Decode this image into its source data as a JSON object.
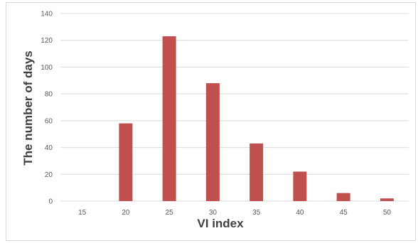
{
  "chart_data": {
    "type": "bar",
    "title": "",
    "xlabel": "VI index",
    "ylabel": "The number of days",
    "categories": [
      "15",
      "20",
      "25",
      "30",
      "35",
      "40",
      "45",
      "50"
    ],
    "values": [
      0,
      58,
      123,
      88,
      43,
      22,
      6,
      2
    ],
    "ylim": [
      0,
      140
    ],
    "yticks": [
      "0",
      "20",
      "40",
      "60",
      "80",
      "100",
      "120",
      "140"
    ],
    "grid": true,
    "legend": "none",
    "bar_color": "#c0504d",
    "grid_color": "#d9d9d9"
  }
}
